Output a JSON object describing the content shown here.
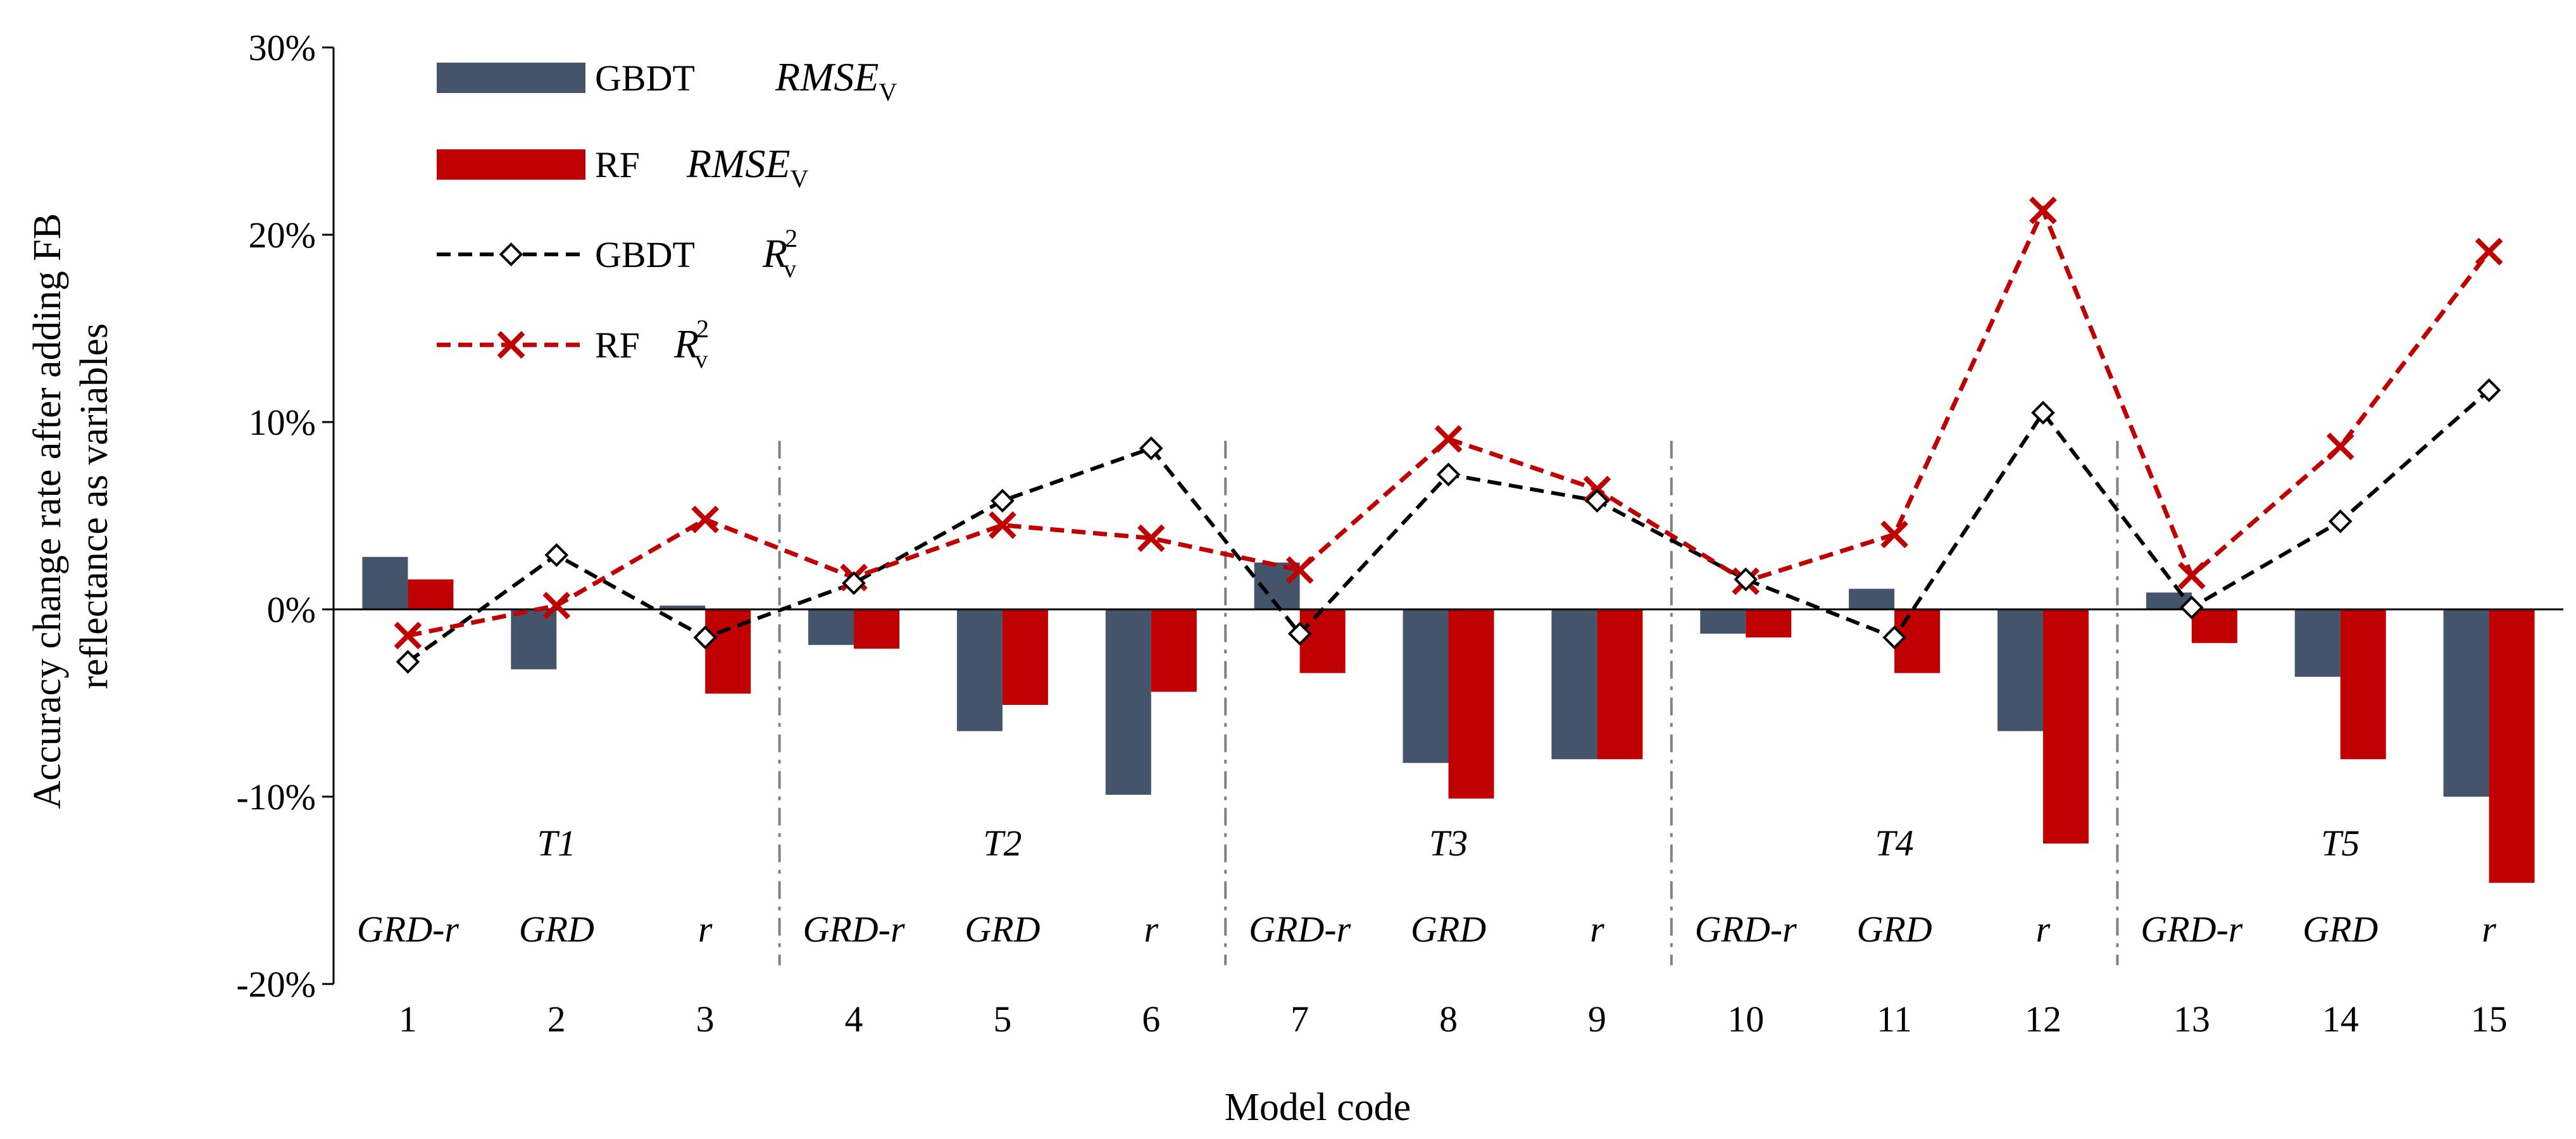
{
  "chart_data": {
    "type": "bar",
    "title": "",
    "xlabel": "Model code",
    "ylabel": "Accuracy change rate after adding FB reflectance as variables",
    "ylabel_lines": [
      "Accuracy change rate after adding FB",
      "reflectance as variables"
    ],
    "ylim": [
      -0.2,
      0.3
    ],
    "yticks": [
      -0.2,
      -0.1,
      0,
      0.1,
      0.2,
      0.3
    ],
    "ytick_labels": [
      "-20%",
      "-10%",
      "0%",
      "10%",
      "20%",
      "30%"
    ],
    "categories": [
      "1",
      "2",
      "3",
      "4",
      "5",
      "6",
      "7",
      "8",
      "9",
      "10",
      "11",
      "12",
      "13",
      "14",
      "15"
    ],
    "groups": [
      {
        "label": "T1",
        "models": [
          "GRD-r",
          "GRD",
          "r"
        ]
      },
      {
        "label": "T2",
        "models": [
          "GRD-r",
          "GRD",
          "r"
        ]
      },
      {
        "label": "T3",
        "models": [
          "GRD-r",
          "GRD",
          "r"
        ]
      },
      {
        "label": "T4",
        "models": [
          "GRD-r",
          "GRD",
          "r"
        ]
      },
      {
        "label": "T5",
        "models": [
          "GRD-r",
          "GRD",
          "r"
        ]
      }
    ],
    "series": [
      {
        "name": "GBDT RMSEV",
        "kind": "bar",
        "color": "#44546a",
        "values": [
          0.028,
          -0.032,
          0.002,
          -0.019,
          -0.065,
          -0.099,
          0.025,
          -0.082,
          -0.08,
          -0.013,
          0.011,
          -0.065,
          0.009,
          -0.036,
          -0.1
        ]
      },
      {
        "name": "RF RMSEV",
        "kind": "bar",
        "color": "#c00000",
        "values": [
          0.016,
          0.0,
          -0.045,
          -0.021,
          -0.051,
          -0.044,
          -0.034,
          -0.101,
          -0.08,
          -0.015,
          -0.034,
          -0.125,
          -0.018,
          -0.08,
          -0.146
        ]
      },
      {
        "name": "GBDT R²V",
        "kind": "line",
        "marker": "diamond",
        "color": "#000000",
        "values": [
          -0.028,
          0.029,
          -0.015,
          0.014,
          0.058,
          0.086,
          -0.013,
          0.072,
          0.058,
          0.016,
          -0.015,
          0.105,
          0.001,
          0.047,
          0.117
        ]
      },
      {
        "name": "RF R²V",
        "kind": "line",
        "marker": "x",
        "color": "#c00000",
        "values": [
          -0.014,
          0.002,
          0.048,
          0.017,
          0.045,
          0.038,
          0.021,
          0.091,
          0.064,
          0.015,
          0.04,
          0.213,
          0.018,
          0.087,
          0.191
        ]
      }
    ],
    "legend": [
      {
        "model": "GBDT",
        "metric": "RMSE",
        "sub": "V",
        "sup": ""
      },
      {
        "model": "RF",
        "metric": "RMSE",
        "sub": "V",
        "sup": ""
      },
      {
        "model": "GBDT",
        "metric": "R",
        "sub": "v",
        "sup": "2"
      },
      {
        "model": "RF",
        "metric": "R",
        "sub": "v",
        "sup": "2"
      }
    ],
    "legend_position": "top-left"
  }
}
